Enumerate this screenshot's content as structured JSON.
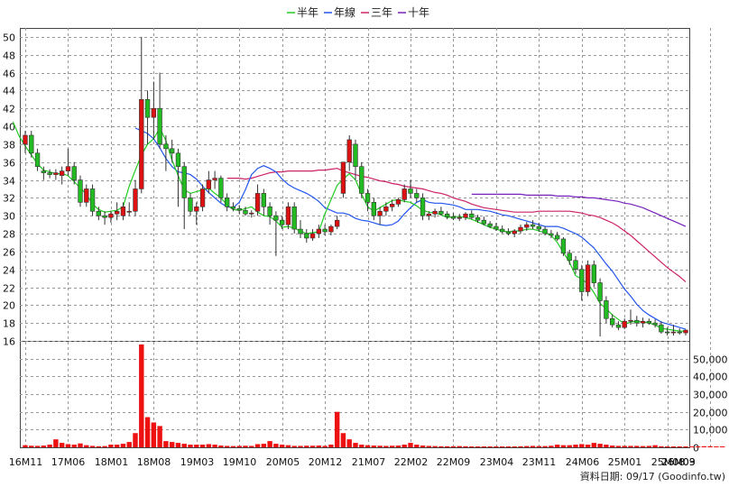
{
  "legend": [
    {
      "label": "半年",
      "color": "#22cc22"
    },
    {
      "label": "年線",
      "color": "#2255ee"
    },
    {
      "label": "三年",
      "color": "#cc2266"
    },
    {
      "label": "十年",
      "color": "#7722bb"
    }
  ],
  "source_note": "資料日期: 09/17 (Goodinfo.tw)",
  "chart_data": {
    "type": "candlestick",
    "price_axis": {
      "min": 16,
      "max": 51,
      "ticks": [
        16,
        18,
        20,
        22,
        24,
        26,
        28,
        30,
        32,
        34,
        36,
        38,
        40,
        42,
        44,
        46,
        48,
        50
      ]
    },
    "volume_axis": {
      "min": 0,
      "max": 60000,
      "ticks": [
        0,
        10000,
        20000,
        30000,
        40000,
        50000
      ],
      "tick_labels": [
        "0",
        "10,000",
        "20,000",
        "30,000",
        "40,000",
        "50,000"
      ]
    },
    "x_labels": [
      {
        "label": "16M11",
        "i": 0
      },
      {
        "label": "17M06",
        "i": 7
      },
      {
        "label": "18M01",
        "i": 14
      },
      {
        "label": "18M08",
        "i": 21
      },
      {
        "label": "19M03",
        "i": 28
      },
      {
        "label": "19M10",
        "i": 35
      },
      {
        "label": "20M05",
        "i": 42
      },
      {
        "label": "20M12",
        "i": 49
      },
      {
        "label": "21M07",
        "i": 56
      },
      {
        "label": "22M02",
        "i": 63
      },
      {
        "label": "22M09",
        "i": 70
      },
      {
        "label": "23M04",
        "i": 77
      },
      {
        "label": "23M11",
        "i": 84
      },
      {
        "label": "24M06",
        "i": 91
      },
      {
        "label": "25M01",
        "i": 98
      },
      {
        "label": "25M08",
        "i": 105
      },
      {
        "label": "26M03",
        "i": 112
      },
      {
        "label": "26M09",
        "i": 118
      }
    ],
    "candles": [
      [
        38.0,
        39.5,
        37.0,
        39.0
      ],
      [
        39.0,
        39.5,
        36.5,
        37.0
      ],
      [
        37.0,
        37.5,
        35.0,
        35.5
      ],
      [
        35.0,
        35.5,
        34.0,
        34.8
      ],
      [
        34.8,
        35.2,
        34.2,
        34.6
      ],
      [
        34.6,
        35.2,
        34.0,
        34.8
      ],
      [
        34.5,
        35.5,
        33.5,
        35.0
      ],
      [
        35.0,
        37.5,
        34.5,
        35.5
      ],
      [
        35.5,
        36.0,
        33.5,
        34.0
      ],
      [
        34.0,
        34.5,
        31.0,
        31.5
      ],
      [
        31.5,
        33.5,
        31.0,
        33.0
      ],
      [
        33.0,
        33.5,
        30.0,
        30.5
      ],
      [
        30.5,
        31.0,
        29.5,
        30.0
      ],
      [
        30.0,
        30.5,
        29.0,
        29.8
      ],
      [
        29.8,
        30.5,
        29.2,
        30.2
      ],
      [
        30.2,
        31.5,
        29.5,
        30.5
      ],
      [
        30.0,
        31.5,
        29.5,
        31.0
      ],
      [
        30.5,
        31.5,
        30.0,
        30.5
      ],
      [
        30.5,
        34.0,
        30.0,
        33.0
      ],
      [
        33.0,
        50.0,
        32.5,
        43.0
      ],
      [
        43.0,
        44.0,
        38.0,
        41.0
      ],
      [
        41.0,
        45.0,
        38.5,
        42.0
      ],
      [
        42.0,
        46.0,
        37.5,
        38.0
      ],
      [
        38.0,
        39.0,
        35.0,
        37.5
      ],
      [
        37.5,
        38.5,
        36.0,
        37.0
      ],
      [
        37.0,
        37.5,
        31.0,
        35.5
      ],
      [
        35.5,
        36.0,
        28.5,
        32.0
      ],
      [
        32.0,
        32.5,
        30.0,
        30.5
      ],
      [
        30.5,
        31.5,
        29.0,
        31.0
      ],
      [
        31.0,
        33.5,
        30.5,
        33.0
      ],
      [
        33.0,
        35.0,
        32.5,
        34.0
      ],
      [
        34.0,
        35.0,
        33.0,
        34.2
      ],
      [
        34.2,
        34.5,
        31.5,
        32.0
      ],
      [
        32.0,
        32.5,
        30.5,
        31.0
      ],
      [
        31.0,
        31.5,
        30.5,
        30.8
      ],
      [
        30.8,
        31.2,
        30.2,
        30.6
      ],
      [
        30.6,
        31.0,
        30.0,
        30.2
      ],
      [
        30.2,
        30.6,
        29.8,
        30.3
      ],
      [
        30.5,
        33.5,
        30.0,
        32.5
      ],
      [
        32.5,
        33.0,
        30.0,
        31.0
      ],
      [
        31.0,
        31.5,
        29.0,
        30.0
      ],
      [
        30.0,
        30.5,
        25.5,
        29.5
      ],
      [
        29.5,
        30.0,
        28.5,
        29.0
      ],
      [
        29.0,
        31.5,
        28.5,
        31.0
      ],
      [
        31.0,
        31.5,
        28.0,
        28.5
      ],
      [
        28.5,
        29.5,
        27.5,
        28.0
      ],
      [
        28.0,
        28.5,
        27.0,
        27.5
      ],
      [
        27.5,
        28.5,
        27.2,
        28.0
      ],
      [
        28.0,
        29.0,
        27.5,
        28.5
      ],
      [
        28.5,
        29.0,
        27.8,
        28.2
      ],
      [
        28.2,
        29.0,
        27.8,
        28.8
      ],
      [
        28.8,
        30.0,
        28.5,
        29.5
      ],
      [
        32.5,
        36.0,
        32.0,
        36.0
      ],
      [
        36.0,
        39.0,
        35.0,
        38.5
      ],
      [
        38.0,
        38.5,
        34.0,
        35.5
      ],
      [
        35.5,
        36.0,
        32.0,
        32.5
      ],
      [
        32.5,
        33.0,
        30.5,
        31.5
      ],
      [
        31.5,
        32.0,
        29.5,
        30.0
      ],
      [
        30.0,
        31.0,
        29.0,
        30.5
      ],
      [
        30.5,
        31.5,
        30.0,
        31.0
      ],
      [
        31.0,
        31.8,
        30.5,
        31.3
      ],
      [
        31.3,
        32.0,
        31.0,
        31.8
      ],
      [
        31.8,
        33.5,
        31.5,
        33.0
      ],
      [
        33.0,
        34.0,
        32.0,
        32.5
      ],
      [
        32.5,
        33.0,
        31.5,
        32.0
      ],
      [
        32.0,
        32.5,
        29.5,
        30.0
      ],
      [
        30.0,
        30.5,
        29.5,
        30.2
      ],
      [
        30.2,
        30.8,
        29.8,
        30.5
      ],
      [
        30.5,
        31.0,
        30.0,
        30.2
      ],
      [
        30.2,
        30.5,
        29.6,
        29.9
      ],
      [
        29.9,
        30.3,
        29.5,
        29.7
      ],
      [
        29.7,
        30.2,
        29.4,
        29.8
      ],
      [
        29.8,
        30.4,
        29.5,
        30.2
      ],
      [
        30.2,
        30.6,
        29.6,
        29.8
      ],
      [
        29.8,
        30.1,
        29.2,
        29.5
      ],
      [
        29.5,
        29.9,
        28.9,
        29.1
      ],
      [
        29.1,
        29.4,
        28.6,
        28.8
      ],
      [
        28.8,
        29.2,
        28.3,
        28.5
      ],
      [
        28.5,
        28.9,
        28.0,
        28.2
      ],
      [
        28.2,
        28.6,
        27.8,
        28.0
      ],
      [
        28.0,
        28.5,
        27.6,
        28.3
      ],
      [
        28.3,
        29.0,
        28.0,
        28.7
      ],
      [
        28.7,
        29.3,
        28.3,
        29.0
      ],
      [
        29.0,
        29.5,
        28.5,
        28.8
      ],
      [
        28.8,
        29.2,
        28.2,
        28.5
      ],
      [
        28.5,
        28.8,
        27.8,
        28.0
      ],
      [
        28.0,
        28.4,
        27.5,
        27.8
      ],
      [
        27.8,
        28.2,
        27.2,
        27.4
      ],
      [
        27.4,
        27.6,
        25.5,
        25.8
      ],
      [
        25.8,
        26.2,
        24.5,
        25.0
      ],
      [
        25.0,
        25.5,
        23.5,
        24.0
      ],
      [
        24.0,
        24.5,
        20.5,
        21.5
      ],
      [
        21.5,
        25.0,
        21.0,
        24.5
      ],
      [
        24.5,
        25.0,
        22.0,
        22.5
      ],
      [
        22.5,
        23.0,
        16.5,
        20.5
      ],
      [
        20.5,
        21.0,
        18.0,
        18.5
      ],
      [
        18.5,
        19.0,
        17.5,
        17.8
      ],
      [
        17.8,
        18.2,
        17.2,
        17.5
      ],
      [
        17.5,
        18.5,
        17.3,
        18.2
      ],
      [
        18.2,
        19.5,
        17.8,
        18.3
      ],
      [
        18.3,
        18.8,
        17.6,
        18.0
      ],
      [
        18.0,
        18.6,
        17.5,
        18.2
      ],
      [
        18.2,
        18.5,
        17.8,
        18.0
      ],
      [
        18.0,
        18.4,
        17.5,
        17.8
      ],
      [
        17.8,
        18.2,
        16.8,
        17.0
      ],
      [
        17.0,
        17.5,
        16.6,
        16.9
      ],
      [
        16.9,
        17.8,
        16.6,
        17.0
      ],
      [
        17.0,
        17.4,
        16.7,
        16.9
      ],
      [
        16.9,
        17.3,
        16.6,
        17.2
      ]
    ],
    "volume": [
      1200,
      900,
      800,
      1000,
      1500,
      4500,
      2500,
      1800,
      1500,
      2200,
      1200,
      800,
      600,
      700,
      1500,
      1500,
      2000,
      3000,
      8000,
      58000,
      17000,
      14000,
      12000,
      3500,
      3000,
      2500,
      2000,
      1500,
      1500,
      1500,
      1800,
      1500,
      1000,
      800,
      700,
      800,
      900,
      800,
      1800,
      2000,
      3500,
      2000,
      1500,
      1200,
      800,
      800,
      900,
      900,
      1000,
      800,
      1500,
      20000,
      8000,
      4500,
      2500,
      1500,
      1200,
      1000,
      900,
      800,
      900,
      1000,
      1500,
      2500,
      1500,
      1000,
      800,
      700,
      600,
      600,
      600,
      700,
      600,
      500,
      500,
      500,
      500,
      500,
      500,
      500,
      500,
      600,
      700,
      800,
      700,
      700,
      900,
      1500,
      1200,
      1200,
      1500,
      1800,
      1500,
      2500,
      2000,
      1500,
      1000,
      800,
      800,
      800,
      800,
      700,
      800,
      1200,
      600,
      500,
      500,
      500,
      500,
      500,
      500,
      600,
      600,
      500,
      500
    ],
    "ma_half_year": [
      40.5,
      38.9,
      37.8,
      36.8,
      35.8,
      35.1,
      34.9,
      34.7,
      34.7,
      34.5,
      33.8,
      33.1,
      32.4,
      31.3,
      30.7,
      30.4,
      30.5,
      30.6,
      31.0,
      33.3,
      35.1,
      36.8,
      38.0,
      38.6,
      39.8,
      38.4,
      36.2,
      34.5,
      32.9,
      32.5,
      32.7,
      32.9,
      33.1,
      32.5,
      32.0,
      31.2,
      30.7,
      30.6,
      30.8,
      31.0,
      30.4,
      30.0,
      29.9,
      29.4,
      28.7,
      28.8,
      28.6,
      28.3,
      28.0,
      28.1,
      28.2,
      30.2,
      31.8,
      33.4,
      34.1,
      34.7,
      34.0,
      32.4,
      31.0,
      30.5,
      30.9,
      31.3,
      31.7,
      31.8,
      31.6,
      31.5,
      31.1,
      30.6,
      30.4,
      30.3,
      30.1,
      29.8,
      29.9,
      29.9,
      29.8,
      29.6,
      29.3,
      29.0,
      28.7,
      28.5,
      28.3,
      28.2,
      28.3,
      28.3,
      28.5,
      28.5,
      28.3,
      28.1,
      27.8,
      27.0,
      25.9,
      24.8,
      23.3,
      22.9,
      22.4,
      21.4,
      20.2,
      19.6,
      18.9,
      18.4,
      17.9,
      18.1,
      18.2,
      18.1,
      18.0,
      17.8,
      17.4,
      17.3,
      17.2,
      17.1,
      17.1
    ],
    "ma_year": [
      39.8,
      39.5,
      39.2,
      38.6,
      37.6,
      36.4,
      35.5,
      34.9,
      34.8,
      34.6,
      34.1,
      33.3,
      32.6,
      32.0,
      31.4,
      31.0,
      30.9,
      31.5,
      32.9,
      34.6,
      35.3,
      35.6,
      35.3,
      34.9,
      34.1,
      33.5,
      33.1,
      32.8,
      32.5,
      32.1,
      31.6,
      30.9,
      30.6,
      30.3,
      30.3,
      30.1,
      29.7,
      29.5,
      29.4,
      29.2,
      29.0,
      28.9,
      29.0,
      29.4,
      30.2,
      30.9,
      31.5,
      31.8,
      31.5,
      31.4,
      31.4,
      31.3,
      31.2,
      31.0,
      30.7,
      30.7,
      30.7,
      30.6,
      30.5,
      30.3,
      30.1,
      30.0,
      29.8,
      29.6,
      29.4,
      29.2,
      29.0,
      28.8,
      28.8,
      28.8,
      28.6,
      28.3,
      28.0,
      27.6,
      27.0,
      26.4,
      25.5,
      24.6,
      23.8,
      22.8,
      21.8,
      21.0,
      20.1,
      19.4,
      18.9,
      18.5,
      18.1,
      17.9,
      17.7,
      17.5,
      17.3
    ],
    "ma_three_year": [
      34.2,
      34.2,
      34.2,
      34.1,
      34.2,
      34.4,
      34.6,
      34.8,
      34.9,
      34.9,
      35.0,
      35.0,
      35.0,
      35.0,
      35.0,
      35.1,
      35.1,
      35.2,
      35.3,
      35.0,
      34.8,
      34.6,
      34.4,
      34.3,
      34.1,
      33.9,
      33.8,
      33.6,
      33.5,
      33.3,
      33.2,
      33.1,
      33.0,
      32.8,
      32.6,
      32.5,
      32.3,
      32.0,
      31.8,
      31.6,
      31.3,
      31.1,
      30.9,
      30.8,
      30.7,
      30.6,
      30.5,
      30.4,
      30.4,
      30.4,
      30.4,
      30.5,
      30.5,
      30.5,
      30.5,
      30.5,
      30.5,
      30.4,
      30.3,
      30.1,
      30.0,
      29.8,
      29.5,
      29.2,
      28.8,
      28.3,
      27.8,
      27.2,
      26.6,
      26.0,
      25.4,
      24.8,
      24.2,
      23.7,
      23.2,
      22.6
    ],
    "ma_ten_year": [
      32.4,
      32.4,
      32.4,
      32.4,
      32.4,
      32.4,
      32.4,
      32.4,
      32.4,
      32.3,
      32.3,
      32.3,
      32.3,
      32.3,
      32.2,
      32.2,
      32.2,
      32.1,
      32.1,
      32.0,
      32.0,
      31.9,
      31.8,
      31.7,
      31.6,
      31.4,
      31.3,
      31.1,
      30.9,
      30.6,
      30.3,
      30.0,
      29.7,
      29.4,
      29.1,
      28.8
    ]
  }
}
